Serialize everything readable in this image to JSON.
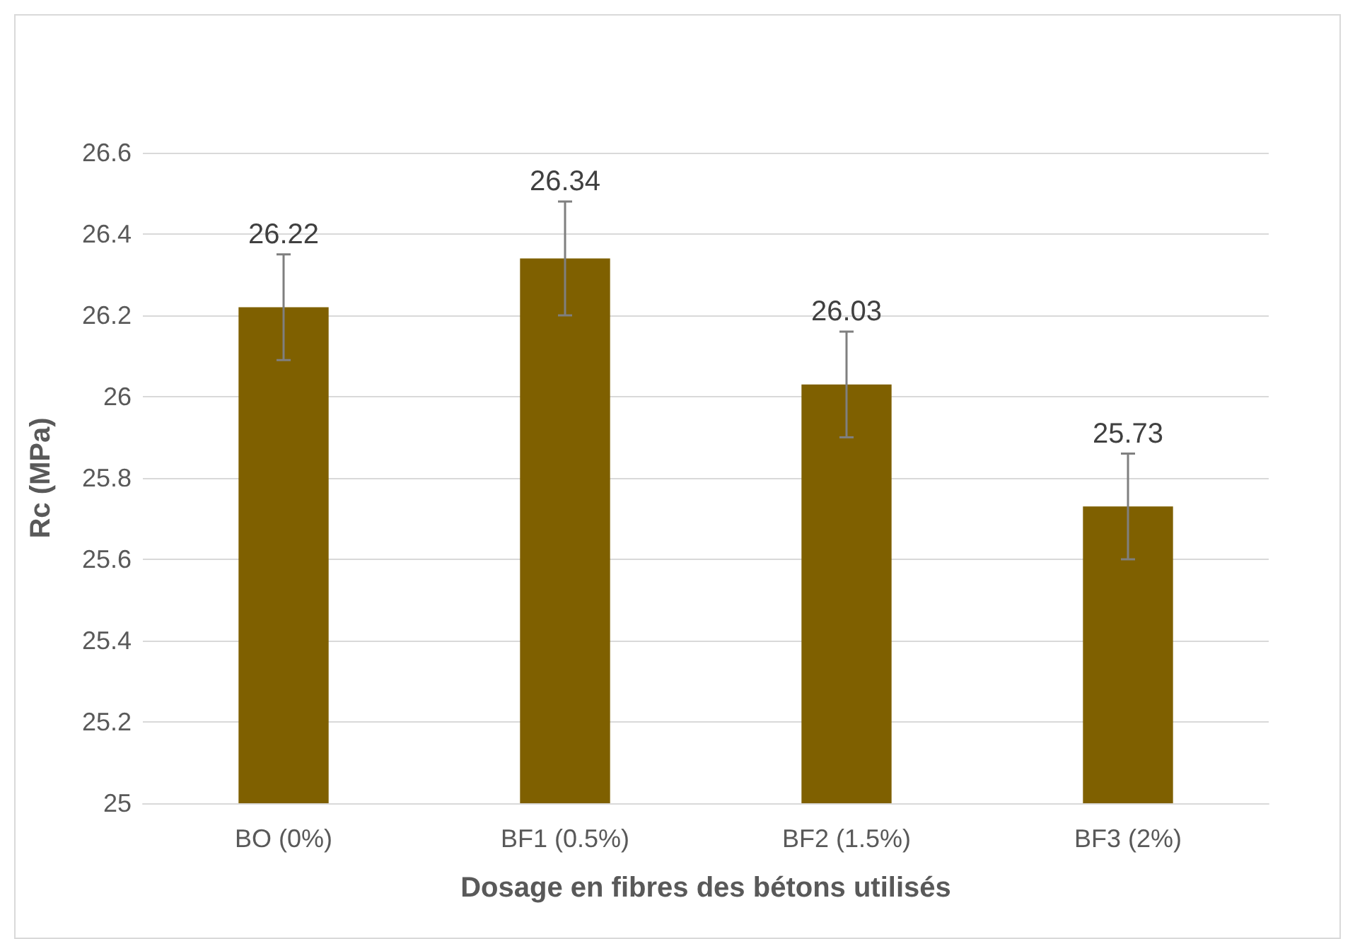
{
  "chart_data": {
    "type": "bar",
    "xlabel": "Dosage en fibres des bétons utilisés",
    "ylabel": "Rc (MPa)",
    "categories": [
      "BO (0%)",
      "BF1 (0.5%)",
      "BF2 (1.5%)",
      "BF3 (2%)"
    ],
    "values": [
      26.22,
      26.34,
      26.03,
      25.73
    ],
    "errors": [
      0.13,
      0.14,
      0.13,
      0.13
    ],
    "color": "#7f6000",
    "ylim": [
      25,
      26.6
    ],
    "yticks": [
      25,
      25.2,
      25.4,
      25.6,
      25.8,
      26,
      26.2,
      26.4,
      26.6
    ],
    "grid": "y",
    "data_labels": true
  }
}
